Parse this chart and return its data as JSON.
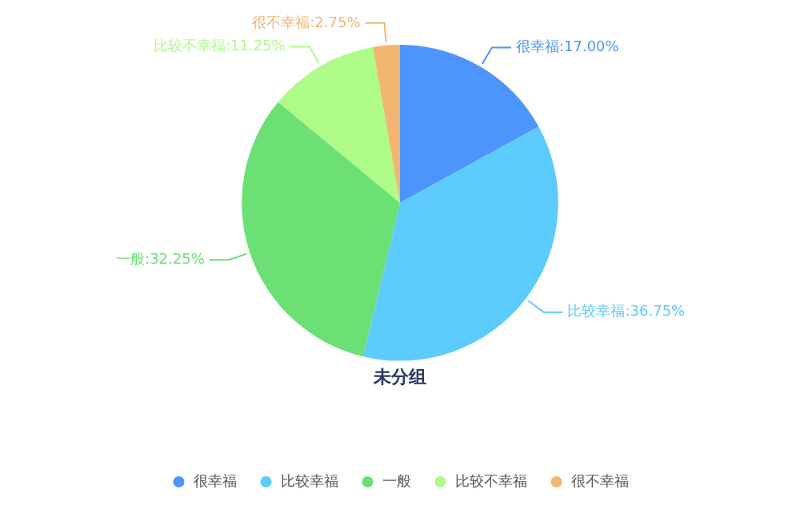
{
  "chart_data": {
    "type": "pie",
    "title": "未分组",
    "categories": [
      "很幸福",
      "比较幸福",
      "一般",
      "比较不幸福",
      "很不幸福"
    ],
    "values": [
      17.0,
      36.75,
      32.25,
      11.25,
      2.75
    ],
    "colors": [
      "#4e95fb",
      "#5ecbfd",
      "#6ce075",
      "#aefb87",
      "#f2b572"
    ],
    "value_labels": [
      "很幸福:17.00%",
      "比较幸福:36.75%",
      "一般:32.25%",
      "比较不幸福:11.25%",
      "很不幸福:2.75%"
    ],
    "legend": "bottom"
  }
}
